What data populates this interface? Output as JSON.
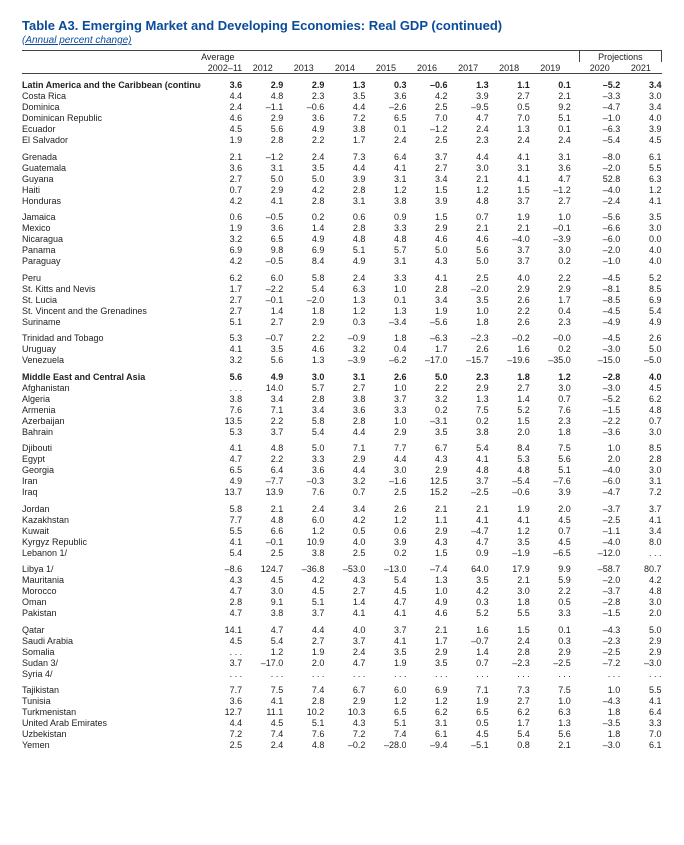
{
  "title": "Table A3. Emerging Market and Developing Economies: Real GDP (continued)",
  "subtitle": "(Annual percent change)",
  "header": {
    "average": "Average",
    "projections": "Projections",
    "avg_years": "2002–11",
    "years": [
      "2012",
      "2013",
      "2014",
      "2015",
      "2016",
      "2017",
      "2018",
      "2019"
    ],
    "proj_years": [
      "2020",
      "2021"
    ]
  },
  "colors": {
    "heading": "#0a4b9a",
    "rule": "#444444",
    "text": "#222222",
    "background": "#ffffff"
  },
  "rows": [
    {
      "type": "section",
      "name": "Latin America and the Caribbean (continued)",
      "v": [
        "3.6",
        "2.9",
        "2.9",
        "1.3",
        "0.3",
        "–0.6",
        "1.3",
        "1.1",
        "0.1",
        "–5.2",
        "3.4"
      ]
    },
    {
      "type": "row",
      "name": "Costa Rica",
      "v": [
        "4.4",
        "4.8",
        "2.3",
        "3.5",
        "3.6",
        "4.2",
        "3.9",
        "2.7",
        "2.1",
        "–3.3",
        "3.0"
      ]
    },
    {
      "type": "row",
      "name": "Dominica",
      "v": [
        "2.4",
        "–1.1",
        "–0.6",
        "4.4",
        "–2.6",
        "2.5",
        "–9.5",
        "0.5",
        "9.2",
        "–4.7",
        "3.4"
      ]
    },
    {
      "type": "row",
      "name": "Dominican Republic",
      "v": [
        "4.6",
        "2.9",
        "3.6",
        "7.2",
        "6.5",
        "7.0",
        "4.7",
        "7.0",
        "5.1",
        "–1.0",
        "4.0"
      ]
    },
    {
      "type": "row",
      "name": "Ecuador",
      "v": [
        "4.5",
        "5.6",
        "4.9",
        "3.8",
        "0.1",
        "–1.2",
        "2.4",
        "1.3",
        "0.1",
        "–6.3",
        "3.9"
      ]
    },
    {
      "type": "row",
      "name": "El Salvador",
      "v": [
        "1.9",
        "2.8",
        "2.2",
        "1.7",
        "2.4",
        "2.5",
        "2.3",
        "2.4",
        "2.4",
        "–5.4",
        "4.5"
      ]
    },
    {
      "type": "spacer",
      "name": "Grenada",
      "v": [
        "2.1",
        "–1.2",
        "2.4",
        "7.3",
        "6.4",
        "3.7",
        "4.4",
        "4.1",
        "3.1",
        "–8.0",
        "6.1"
      ]
    },
    {
      "type": "row",
      "name": "Guatemala",
      "v": [
        "3.6",
        "3.1",
        "3.5",
        "4.4",
        "4.1",
        "2.7",
        "3.0",
        "3.1",
        "3.6",
        "–2.0",
        "5.5"
      ]
    },
    {
      "type": "row",
      "name": "Guyana",
      "v": [
        "2.7",
        "5.0",
        "5.0",
        "3.9",
        "3.1",
        "3.4",
        "2.1",
        "4.1",
        "4.7",
        "52.8",
        "6.3"
      ]
    },
    {
      "type": "row",
      "name": "Haiti",
      "v": [
        "0.7",
        "2.9",
        "4.2",
        "2.8",
        "1.2",
        "1.5",
        "1.2",
        "1.5",
        "–1.2",
        "–4.0",
        "1.2"
      ]
    },
    {
      "type": "row",
      "name": "Honduras",
      "v": [
        "4.2",
        "4.1",
        "2.8",
        "3.1",
        "3.8",
        "3.9",
        "4.8",
        "3.7",
        "2.7",
        "–2.4",
        "4.1"
      ]
    },
    {
      "type": "spacer",
      "name": "Jamaica",
      "v": [
        "0.6",
        "–0.5",
        "0.2",
        "0.6",
        "0.9",
        "1.5",
        "0.7",
        "1.9",
        "1.0",
        "–5.6",
        "3.5"
      ]
    },
    {
      "type": "row",
      "name": "Mexico",
      "v": [
        "1.9",
        "3.6",
        "1.4",
        "2.8",
        "3.3",
        "2.9",
        "2.1",
        "2.1",
        "–0.1",
        "–6.6",
        "3.0"
      ]
    },
    {
      "type": "row",
      "name": "Nicaragua",
      "v": [
        "3.2",
        "6.5",
        "4.9",
        "4.8",
        "4.8",
        "4.6",
        "4.6",
        "–4.0",
        "–3.9",
        "–6.0",
        "0.0"
      ]
    },
    {
      "type": "row",
      "name": "Panama",
      "v": [
        "6.9",
        "9.8",
        "6.9",
        "5.1",
        "5.7",
        "5.0",
        "5.6",
        "3.7",
        "3.0",
        "–2.0",
        "4.0"
      ]
    },
    {
      "type": "row",
      "name": "Paraguay",
      "v": [
        "4.2",
        "–0.5",
        "8.4",
        "4.9",
        "3.1",
        "4.3",
        "5.0",
        "3.7",
        "0.2",
        "–1.0",
        "4.0"
      ]
    },
    {
      "type": "spacer",
      "name": "Peru",
      "v": [
        "6.2",
        "6.0",
        "5.8",
        "2.4",
        "3.3",
        "4.1",
        "2.5",
        "4.0",
        "2.2",
        "–4.5",
        "5.2"
      ]
    },
    {
      "type": "row",
      "name": "St. Kitts and Nevis",
      "v": [
        "1.7",
        "–2.2",
        "5.4",
        "6.3",
        "1.0",
        "2.8",
        "–2.0",
        "2.9",
        "2.9",
        "–8.1",
        "8.5"
      ]
    },
    {
      "type": "row",
      "name": "St. Lucia",
      "v": [
        "2.7",
        "–0.1",
        "–2.0",
        "1.3",
        "0.1",
        "3.4",
        "3.5",
        "2.6",
        "1.7",
        "–8.5",
        "6.9"
      ]
    },
    {
      "type": "row",
      "name": "St. Vincent and the Grenadines",
      "v": [
        "2.7",
        "1.4",
        "1.8",
        "1.2",
        "1.3",
        "1.9",
        "1.0",
        "2.2",
        "0.4",
        "–4.5",
        "5.4"
      ]
    },
    {
      "type": "row",
      "name": "Suriname",
      "v": [
        "5.1",
        "2.7",
        "2.9",
        "0.3",
        "–3.4",
        "–5.6",
        "1.8",
        "2.6",
        "2.3",
        "–4.9",
        "4.9"
      ]
    },
    {
      "type": "spacer",
      "name": "Trinidad and Tobago",
      "v": [
        "5.3",
        "–0.7",
        "2.2",
        "–0.9",
        "1.8",
        "–6.3",
        "–2.3",
        "–0.2",
        "–0.0",
        "–4.5",
        "2.6"
      ]
    },
    {
      "type": "row",
      "name": "Uruguay",
      "v": [
        "4.1",
        "3.5",
        "4.6",
        "3.2",
        "0.4",
        "1.7",
        "2.6",
        "1.6",
        "0.2",
        "–3.0",
        "5.0"
      ]
    },
    {
      "type": "row",
      "name": "Venezuela",
      "v": [
        "3.2",
        "5.6",
        "1.3",
        "–3.9",
        "–6.2",
        "–17.0",
        "–15.7",
        "–19.6",
        "–35.0",
        "–15.0",
        "–5.0"
      ]
    },
    {
      "type": "section",
      "name": "Middle East and Central Asia",
      "v": [
        "5.6",
        "4.9",
        "3.0",
        "3.1",
        "2.6",
        "5.0",
        "2.3",
        "1.8",
        "1.2",
        "–2.8",
        "4.0"
      ]
    },
    {
      "type": "row",
      "name": "Afghanistan",
      "v": [
        ". . .",
        "14.0",
        "5.7",
        "2.7",
        "1.0",
        "2.2",
        "2.9",
        "2.7",
        "3.0",
        "–3.0",
        "4.5"
      ]
    },
    {
      "type": "row",
      "name": "Algeria",
      "v": [
        "3.8",
        "3.4",
        "2.8",
        "3.8",
        "3.7",
        "3.2",
        "1.3",
        "1.4",
        "0.7",
        "–5.2",
        "6.2"
      ]
    },
    {
      "type": "row",
      "name": "Armenia",
      "v": [
        "7.6",
        "7.1",
        "3.4",
        "3.6",
        "3.3",
        "0.2",
        "7.5",
        "5.2",
        "7.6",
        "–1.5",
        "4.8"
      ]
    },
    {
      "type": "row",
      "name": "Azerbaijan",
      "v": [
        "13.5",
        "2.2",
        "5.8",
        "2.8",
        "1.0",
        "–3.1",
        "0.2",
        "1.5",
        "2.3",
        "–2.2",
        "0.7"
      ]
    },
    {
      "type": "row",
      "name": "Bahrain",
      "v": [
        "5.3",
        "3.7",
        "5.4",
        "4.4",
        "2.9",
        "3.5",
        "3.8",
        "2.0",
        "1.8",
        "–3.6",
        "3.0"
      ]
    },
    {
      "type": "spacer",
      "name": "Djibouti",
      "v": [
        "4.1",
        "4.8",
        "5.0",
        "7.1",
        "7.7",
        "6.7",
        "5.4",
        "8.4",
        "7.5",
        "1.0",
        "8.5"
      ]
    },
    {
      "type": "row",
      "name": "Egypt",
      "v": [
        "4.7",
        "2.2",
        "3.3",
        "2.9",
        "4.4",
        "4.3",
        "4.1",
        "5.3",
        "5.6",
        "2.0",
        "2.8"
      ]
    },
    {
      "type": "row",
      "name": "Georgia",
      "v": [
        "6.5",
        "6.4",
        "3.6",
        "4.4",
        "3.0",
        "2.9",
        "4.8",
        "4.8",
        "5.1",
        "–4.0",
        "3.0"
      ]
    },
    {
      "type": "row",
      "name": "Iran",
      "v": [
        "4.9",
        "–7.7",
        "–0.3",
        "3.2",
        "–1.6",
        "12.5",
        "3.7",
        "–5.4",
        "–7.6",
        "–6.0",
        "3.1"
      ]
    },
    {
      "type": "row",
      "name": "Iraq",
      "v": [
        "13.7",
        "13.9",
        "7.6",
        "0.7",
        "2.5",
        "15.2",
        "–2.5",
        "–0.6",
        "3.9",
        "–4.7",
        "7.2"
      ]
    },
    {
      "type": "spacer",
      "name": "Jordan",
      "v": [
        "5.8",
        "2.1",
        "2.4",
        "3.4",
        "2.6",
        "2.1",
        "2.1",
        "1.9",
        "2.0",
        "–3.7",
        "3.7"
      ]
    },
    {
      "type": "row",
      "name": "Kazakhstan",
      "v": [
        "7.7",
        "4.8",
        "6.0",
        "4.2",
        "1.2",
        "1.1",
        "4.1",
        "4.1",
        "4.5",
        "–2.5",
        "4.1"
      ]
    },
    {
      "type": "row",
      "name": "Kuwait",
      "v": [
        "5.5",
        "6.6",
        "1.2",
        "0.5",
        "0.6",
        "2.9",
        "–4.7",
        "1.2",
        "0.7",
        "–1.1",
        "3.4"
      ]
    },
    {
      "type": "row",
      "name": "Kyrgyz Republic",
      "v": [
        "4.1",
        "–0.1",
        "10.9",
        "4.0",
        "3.9",
        "4.3",
        "4.7",
        "3.5",
        "4.5",
        "–4.0",
        "8.0"
      ]
    },
    {
      "type": "row",
      "name": "Lebanon 1/",
      "v": [
        "5.4",
        "2.5",
        "3.8",
        "2.5",
        "0.2",
        "1.5",
        "0.9",
        "–1.9",
        "–6.5",
        "–12.0",
        ". . ."
      ]
    },
    {
      "type": "spacer",
      "name": "Libya 1/",
      "v": [
        "–8.6",
        "124.7",
        "–36.8",
        "–53.0",
        "–13.0",
        "–7.4",
        "64.0",
        "17.9",
        "9.9",
        "–58.7",
        "80.7"
      ]
    },
    {
      "type": "row",
      "name": "Mauritania",
      "v": [
        "4.3",
        "4.5",
        "4.2",
        "4.3",
        "5.4",
        "1.3",
        "3.5",
        "2.1",
        "5.9",
        "–2.0",
        "4.2"
      ]
    },
    {
      "type": "row",
      "name": "Morocco",
      "v": [
        "4.7",
        "3.0",
        "4.5",
        "2.7",
        "4.5",
        "1.0",
        "4.2",
        "3.0",
        "2.2",
        "–3.7",
        "4.8"
      ]
    },
    {
      "type": "row",
      "name": "Oman",
      "v": [
        "2.8",
        "9.1",
        "5.1",
        "1.4",
        "4.7",
        "4.9",
        "0.3",
        "1.8",
        "0.5",
        "–2.8",
        "3.0"
      ]
    },
    {
      "type": "row",
      "name": "Pakistan",
      "v": [
        "4.7",
        "3.8",
        "3.7",
        "4.1",
        "4.1",
        "4.6",
        "5.2",
        "5.5",
        "3.3",
        "–1.5",
        "2.0"
      ]
    },
    {
      "type": "spacer",
      "name": "Qatar",
      "v": [
        "14.1",
        "4.7",
        "4.4",
        "4.0",
        "3.7",
        "2.1",
        "1.6",
        "1.5",
        "0.1",
        "–4.3",
        "5.0"
      ]
    },
    {
      "type": "row",
      "name": "Saudi Arabia",
      "v": [
        "4.5",
        "5.4",
        "2.7",
        "3.7",
        "4.1",
        "1.7",
        "–0.7",
        "2.4",
        "0.3",
        "–2.3",
        "2.9"
      ]
    },
    {
      "type": "row",
      "name": "Somalia",
      "v": [
        ". . .",
        "1.2",
        "1.9",
        "2.4",
        "3.5",
        "2.9",
        "1.4",
        "2.8",
        "2.9",
        "–2.5",
        "2.9"
      ]
    },
    {
      "type": "row",
      "name": "Sudan 3/",
      "v": [
        "3.7",
        "–17.0",
        "2.0",
        "4.7",
        "1.9",
        "3.5",
        "0.7",
        "–2.3",
        "–2.5",
        "–7.2",
        "–3.0"
      ]
    },
    {
      "type": "row",
      "name": "Syria 4/",
      "v": [
        ". . .",
        ". . .",
        ". . .",
        ". . .",
        ". . .",
        ". . .",
        ". . .",
        ". . .",
        ". . .",
        ". . .",
        ". . ."
      ]
    },
    {
      "type": "spacer",
      "name": "Tajikistan",
      "v": [
        "7.7",
        "7.5",
        "7.4",
        "6.7",
        "6.0",
        "6.9",
        "7.1",
        "7.3",
        "7.5",
        "1.0",
        "5.5"
      ]
    },
    {
      "type": "row",
      "name": "Tunisia",
      "v": [
        "3.6",
        "4.1",
        "2.8",
        "2.9",
        "1.2",
        "1.2",
        "1.9",
        "2.7",
        "1.0",
        "–4.3",
        "4.1"
      ]
    },
    {
      "type": "row",
      "name": "Turkmenistan",
      "v": [
        "12.7",
        "11.1",
        "10.2",
        "10.3",
        "6.5",
        "6.2",
        "6.5",
        "6.2",
        "6.3",
        "1.8",
        "6.4"
      ]
    },
    {
      "type": "row",
      "name": "United Arab Emirates",
      "v": [
        "4.4",
        "4.5",
        "5.1",
        "4.3",
        "5.1",
        "3.1",
        "0.5",
        "1.7",
        "1.3",
        "–3.5",
        "3.3"
      ]
    },
    {
      "type": "row",
      "name": "Uzbekistan",
      "v": [
        "7.2",
        "7.4",
        "7.6",
        "7.2",
        "7.4",
        "6.1",
        "4.5",
        "5.4",
        "5.6",
        "1.8",
        "7.0"
      ]
    },
    {
      "type": "row",
      "name": "Yemen",
      "v": [
        "2.5",
        "2.4",
        "4.8",
        "–0.2",
        "–28.0",
        "–9.4",
        "–5.1",
        "0.8",
        "2.1",
        "–3.0",
        "6.1"
      ]
    }
  ]
}
